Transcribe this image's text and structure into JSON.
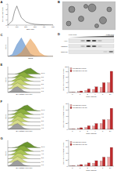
{
  "chart_data": [
    {
      "panel": "A",
      "type": "line",
      "x_label": "Size (nm)",
      "y_label": "Particles (x10^8/ml)",
      "x": [
        0,
        50,
        75,
        100,
        125,
        150,
        200,
        250,
        300,
        400,
        500
      ],
      "series": [
        {
          "color": "#222222",
          "values": [
            0,
            0.8,
            2.6,
            3.6,
            2.4,
            1.4,
            0.6,
            0.3,
            0.15,
            0.05,
            0
          ]
        }
      ],
      "xlim": [
        0,
        500
      ],
      "xticks": [
        0,
        100,
        200,
        300,
        400,
        500
      ],
      "ylim": [
        0,
        4
      ],
      "yticks": [
        0,
        1,
        2,
        3,
        4
      ]
    },
    {
      "panel": "C",
      "type": "area",
      "x_label": "CD63",
      "y_label": "Count",
      "x": [
        0,
        0.5,
        1,
        1.5,
        2,
        2.5,
        3,
        3.5,
        4,
        4.5,
        5
      ],
      "series": [
        {
          "color": "#3a78c2",
          "values": [
            0,
            10,
            60,
            95,
            50,
            12,
            2,
            0,
            0,
            0,
            0
          ]
        },
        {
          "color": "#e8923a",
          "values": [
            0,
            0,
            5,
            20,
            55,
            90,
            60,
            20,
            5,
            0,
            0
          ]
        }
      ],
      "xlim": [
        0,
        5
      ],
      "ylim": [
        0,
        100
      ],
      "tick_labels": false
    },
    {
      "panel": "E",
      "type": "ridgeline",
      "x_label": "EV uptake (PKH67)",
      "y_label": "Count",
      "x": [
        0,
        0.5,
        1,
        1.5,
        2,
        2.5,
        3,
        3.5,
        4,
        4.5,
        5
      ],
      "series": [
        {
          "name": "0 h",
          "color": "#9e9e9e",
          "values": [
            0,
            0.3,
            0.8,
            1,
            0.6,
            0.2,
            0.05,
            0,
            0,
            0,
            0
          ]
        },
        {
          "name": "1 h",
          "color": "#d6dc8a",
          "values": [
            0,
            0.2,
            0.7,
            1,
            0.7,
            0.3,
            0.1,
            0,
            0,
            0,
            0
          ]
        },
        {
          "name": "2 h",
          "color": "#c3d26c",
          "values": [
            0,
            0.1,
            0.5,
            0.9,
            1,
            0.5,
            0.2,
            0.05,
            0,
            0,
            0
          ]
        },
        {
          "name": "4 h",
          "color": "#a9c453",
          "values": [
            0,
            0.05,
            0.3,
            0.7,
            1,
            0.7,
            0.3,
            0.1,
            0,
            0,
            0
          ]
        },
        {
          "name": "8 h",
          "color": "#8caf3e",
          "values": [
            0,
            0,
            0.1,
            0.4,
            0.8,
            1,
            0.6,
            0.3,
            0.1,
            0,
            0
          ]
        },
        {
          "name": "24 h",
          "color": "#6a952e",
          "values": [
            0,
            0,
            0,
            0.1,
            0.3,
            0.6,
            0.9,
            1,
            0.6,
            0.2,
            0
          ]
        }
      ],
      "xlim": [
        0,
        5
      ],
      "ylim": [
        0,
        1
      ],
      "tick_labels": false
    },
    {
      "type": "bar",
      "x_label": "Time (hours)",
      "y_label": "EV uptake (% PKH67+ cells)",
      "categories": [
        "0",
        "1",
        "2",
        "4",
        "8",
        "24"
      ],
      "series": [
        {
          "name": "HUVEC-EVs (2 μg)",
          "color": "#f0a0a0",
          "values": [
            1,
            4,
            8,
            12,
            20,
            38
          ]
        },
        {
          "name": "HUVEC-EVs (10 μg)",
          "color": "#c0282a",
          "values": [
            1,
            6,
            14,
            22,
            38,
            82
          ]
        }
      ],
      "ylim": [
        0,
        100
      ],
      "yticks": [
        0,
        20,
        40,
        60,
        80,
        100
      ],
      "legend": "top-left"
    },
    {
      "panel": "F",
      "type": "ridgeline",
      "x_label": "EV uptake (PKH67)",
      "y_label": "Count",
      "x": [
        0,
        0.5,
        1,
        1.5,
        2,
        2.5,
        3,
        3.5,
        4,
        4.5,
        5
      ],
      "series": [
        {
          "name": "0 h",
          "color": "#9e9e9e",
          "values": [
            0,
            0.3,
            0.8,
            1,
            0.6,
            0.2,
            0.05,
            0,
            0,
            0,
            0
          ]
        },
        {
          "name": "1 h",
          "color": "#d6dc8a",
          "values": [
            0,
            0.25,
            0.75,
            1,
            0.65,
            0.25,
            0.05,
            0,
            0,
            0,
            0
          ]
        },
        {
          "name": "2 h",
          "color": "#c3d26c",
          "values": [
            0,
            0.15,
            0.6,
            1,
            0.8,
            0.35,
            0.1,
            0,
            0,
            0,
            0
          ]
        },
        {
          "name": "4 h",
          "color": "#a9c453",
          "values": [
            0,
            0.1,
            0.4,
            0.85,
            1,
            0.55,
            0.2,
            0.05,
            0,
            0,
            0
          ]
        },
        {
          "name": "8 h",
          "color": "#8caf3e",
          "values": [
            0,
            0.05,
            0.2,
            0.55,
            0.95,
            0.9,
            0.45,
            0.15,
            0,
            0,
            0
          ]
        },
        {
          "name": "24 h",
          "color": "#6a952e",
          "values": [
            0,
            0,
            0.05,
            0.2,
            0.5,
            0.85,
            1,
            0.6,
            0.2,
            0.05,
            0
          ]
        }
      ],
      "xlim": [
        0,
        5
      ],
      "ylim": [
        0,
        1
      ],
      "tick_labels": false
    },
    {
      "type": "bar",
      "x_label": "Time (hours)",
      "y_label": "EV uptake (% PKH67+ cells)",
      "categories": [
        "0",
        "1",
        "2",
        "4",
        "8",
        "24"
      ],
      "series": [
        {
          "name": "HUVEC-EVs (2 μg)",
          "color": "#f0a0a0",
          "values": [
            1,
            3,
            6,
            10,
            18,
            30
          ]
        },
        {
          "name": "HUVEC-EVs (10 μg)",
          "color": "#c0282a",
          "values": [
            1,
            5,
            11,
            18,
            30,
            65
          ]
        }
      ],
      "ylim": [
        0,
        80
      ],
      "yticks": [
        0,
        20,
        40,
        60,
        80
      ],
      "legend": "top-left"
    },
    {
      "panel": "G",
      "type": "ridgeline",
      "x_label": "EV uptake (PKH67)",
      "y_label": "Count",
      "x": [
        0,
        0.5,
        1,
        1.5,
        2,
        2.5,
        3,
        3.5,
        4,
        4.5,
        5
      ],
      "series": [
        {
          "name": "0 h",
          "color": "#9e9e9e",
          "values": [
            0,
            0.3,
            0.8,
            1,
            0.6,
            0.2,
            0.05,
            0,
            0,
            0,
            0
          ]
        },
        {
          "name": "1 h",
          "color": "#d6dc8a",
          "values": [
            0,
            0.25,
            0.7,
            1,
            0.7,
            0.3,
            0.05,
            0,
            0,
            0,
            0
          ]
        },
        {
          "name": "2 h",
          "color": "#c3d26c",
          "values": [
            0,
            0.15,
            0.55,
            0.95,
            0.9,
            0.4,
            0.1,
            0,
            0,
            0,
            0
          ]
        },
        {
          "name": "4 h",
          "color": "#a9c453",
          "values": [
            0,
            0.1,
            0.35,
            0.8,
            1,
            0.6,
            0.2,
            0.05,
            0,
            0,
            0
          ]
        },
        {
          "name": "8 h",
          "color": "#8caf3e",
          "values": [
            0,
            0.05,
            0.2,
            0.5,
            0.9,
            0.95,
            0.5,
            0.15,
            0,
            0,
            0
          ]
        },
        {
          "name": "24 h",
          "color": "#6a952e",
          "values": [
            0,
            0,
            0.05,
            0.15,
            0.45,
            0.8,
            1,
            0.65,
            0.25,
            0.05,
            0
          ]
        }
      ],
      "xlim": [
        0,
        5
      ],
      "ylim": [
        0,
        1
      ],
      "tick_labels": false
    },
    {
      "type": "bar",
      "x_label": "Time (hours)",
      "y_label": "EV uptake (% PKH67+ cells)",
      "categories": [
        "0",
        "1",
        "2",
        "4",
        "8",
        "24"
      ],
      "series": [
        {
          "name": "HUVEC-EVs (2 μg)",
          "color": "#f0a0a0",
          "values": [
            1,
            3,
            5,
            9,
            16,
            28
          ]
        },
        {
          "name": "HUVEC-EVs (10 μg)",
          "color": "#c0282a",
          "values": [
            1,
            5,
            10,
            17,
            28,
            58
          ]
        }
      ],
      "ylim": [
        0,
        80
      ],
      "yticks": [
        0,
        20,
        40,
        60,
        80
      ],
      "legend": "top-left"
    }
  ],
  "micrograph": {
    "panel": "B"
  },
  "blot": {
    "panel": "D",
    "density_labels": [
      "1.069 g/ml",
      "1.231 g/ml"
    ],
    "rows": [
      "ALIX",
      "TSG101",
      "Calnexin"
    ],
    "bands": [
      [
        0,
        0,
        0.3,
        0.9,
        0.8,
        0.2,
        0,
        0
      ],
      [
        0,
        0,
        0.2,
        0.8,
        0.7,
        0.1,
        0,
        0
      ],
      [
        0,
        0,
        0,
        0,
        0,
        0,
        0.1,
        0.5
      ]
    ]
  }
}
